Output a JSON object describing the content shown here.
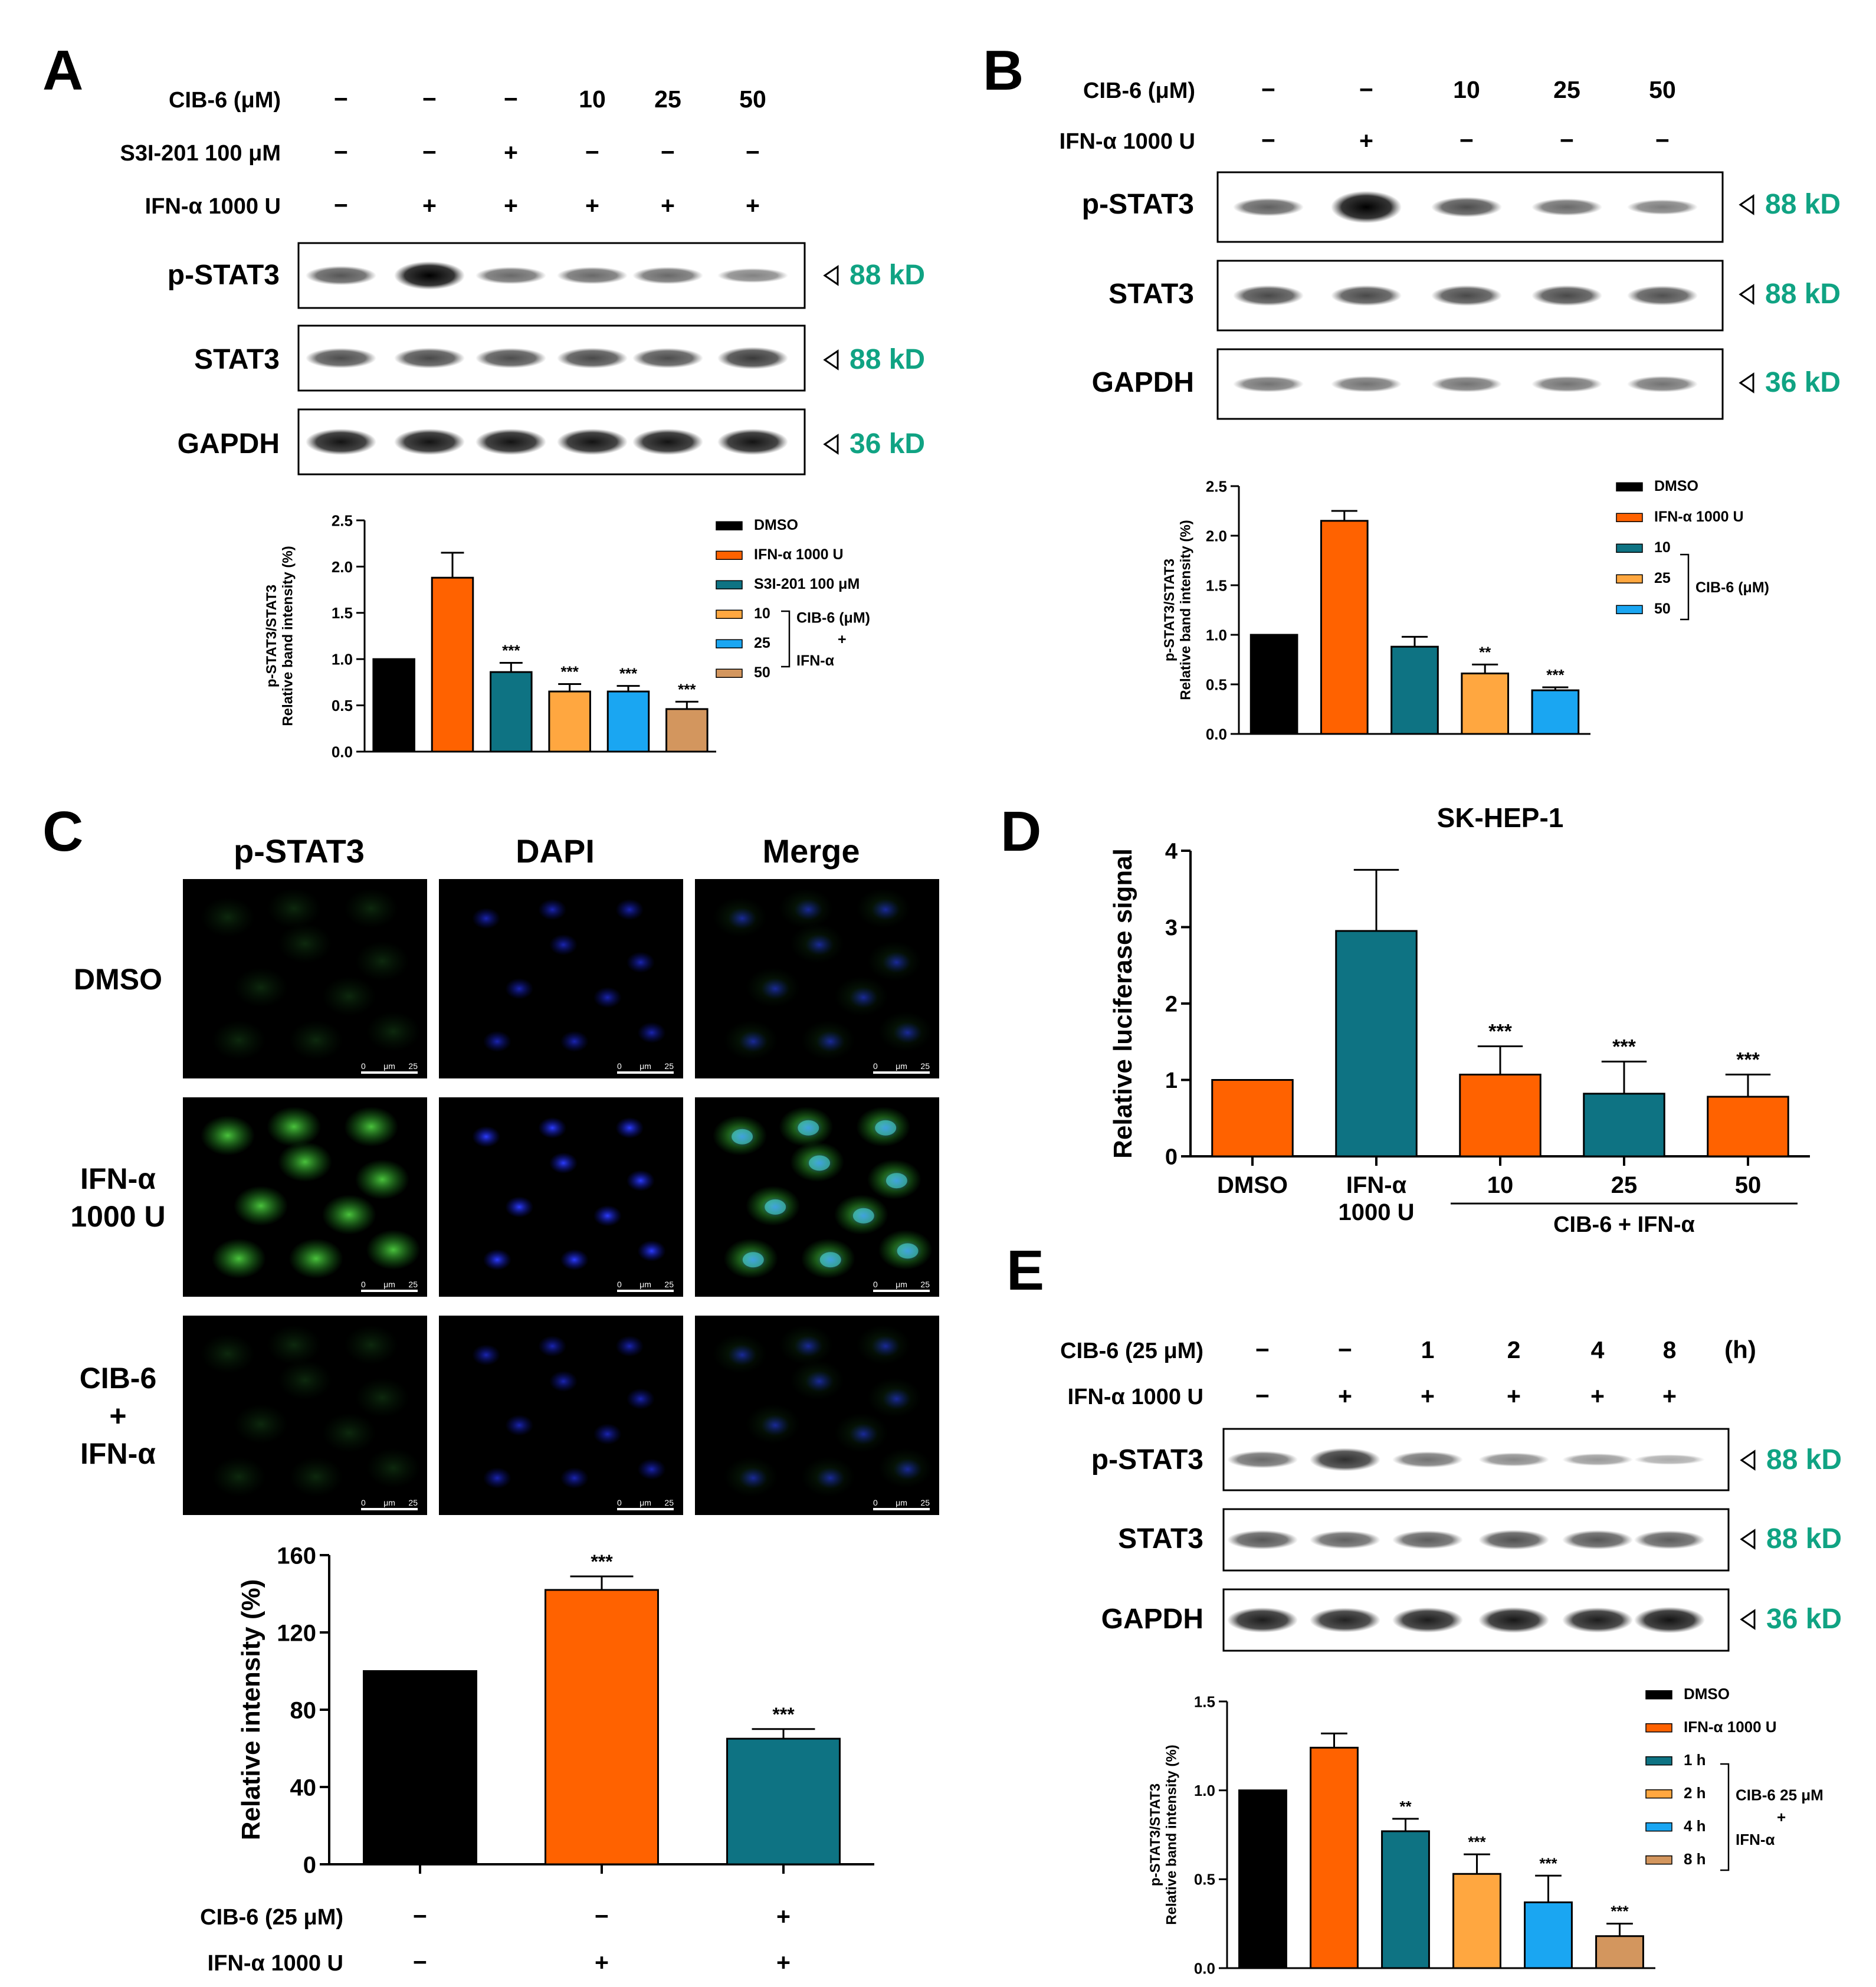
{
  "colors": {
    "dmso": "#000000",
    "ifn": "#ff6200",
    "teal": "#0e7383",
    "orange10": "#ffa740",
    "blue25": "#1aa6f2",
    "tan50": "#d3965e",
    "kd_green": "#10a383"
  },
  "blots": {
    "kd_88": "88 kD",
    "kd_36": "36 kD",
    "pstat3": "p-STAT3",
    "stat3": "STAT3",
    "gapdh": "GAPDH"
  },
  "panels": {
    "A": {
      "letter": "A",
      "cond_rows": [
        {
          "label": "CIB-6 (μM)",
          "values": [
            "−",
            "−",
            "−",
            "10",
            "25",
            "50"
          ]
        },
        {
          "label": "S3I-201 100 μM",
          "values": [
            "−",
            "−",
            "+",
            "−",
            "−",
            "−"
          ]
        },
        {
          "label": "IFN-α 1000 U",
          "values": [
            "−",
            "+",
            "+",
            "+",
            "+",
            "+"
          ]
        }
      ],
      "legend": [
        "DMSO",
        "IFN-α 1000 U",
        "S3I-201 100 μM",
        "10",
        "25",
        "50"
      ],
      "bracket_label": [
        "CIB-6 (μM)",
        "+",
        "IFN-α"
      ]
    },
    "B": {
      "letter": "B",
      "cond_rows": [
        {
          "label": "CIB-6 (μM)",
          "values": [
            "−",
            "−",
            "10",
            "25",
            "50"
          ]
        },
        {
          "label": "IFN-α 1000 U",
          "values": [
            "−",
            "+",
            "−",
            "−",
            "−"
          ]
        }
      ],
      "legend": [
        "DMSO",
        "IFN-α 1000 U",
        "10",
        "25",
        "50"
      ],
      "bracket_label": [
        "CIB-6 (μM)"
      ]
    },
    "C": {
      "letter": "C",
      "columns": [
        "p-STAT3",
        "DAPI",
        "Merge"
      ],
      "rows": [
        [
          "DMSO"
        ],
        [
          "IFN-α",
          "1000 U"
        ],
        [
          "CIB-6",
          "+",
          "IFN-α"
        ]
      ],
      "scalebar": [
        "0",
        "μm",
        "25"
      ],
      "cond_rows": [
        {
          "label": "CIB-6 (25 μM)",
          "values": [
            "−",
            "−",
            "+"
          ]
        },
        {
          "label": "IFN-α 1000 U",
          "values": [
            "−",
            "+",
            "+"
          ]
        }
      ]
    },
    "D": {
      "letter": "D",
      "xlabels": [
        [
          "DMSO"
        ],
        [
          "IFN-α",
          "1000 U"
        ],
        [
          "10"
        ],
        [
          "25"
        ],
        [
          "50"
        ]
      ],
      "group_label": "CIB-6 + IFN-α"
    },
    "E": {
      "letter": "E",
      "cond_rows": [
        {
          "label": "CIB-6 (25 μM)",
          "values": [
            "−",
            "−",
            "1",
            "2",
            "4",
            "8"
          ]
        },
        {
          "label": "IFN-α 1000 U",
          "values": [
            "−",
            "+",
            "+",
            "+",
            "+",
            "+"
          ]
        }
      ],
      "unit": "(h)",
      "legend": [
        "DMSO",
        "IFN-α 1000 U",
        "1 h",
        "2 h",
        "4 h",
        "8 h"
      ],
      "bracket_label": [
        "CIB-6 25 μM",
        "+",
        "IFN-α"
      ]
    }
  },
  "chart_data": [
    {
      "panel": "A",
      "type": "bar",
      "categories": [
        "DMSO",
        "IFN-α 1000 U",
        "S3I-201 100 μM",
        "10",
        "25",
        "50"
      ],
      "values": [
        1.0,
        1.88,
        0.86,
        0.65,
        0.65,
        0.46
      ],
      "errors": [
        0,
        0.27,
        0.1,
        0.08,
        0.06,
        0.08
      ],
      "significance": [
        "",
        "",
        "***",
        "***",
        "***",
        "***"
      ],
      "ylabel": [
        "p-STAT3/STAT3",
        "Relative band intensity (%)"
      ],
      "ylim": [
        0,
        2.5
      ],
      "yticks": [
        "0.0",
        "0.5",
        "1.0",
        "1.5",
        "2.0",
        "2.5"
      ]
    },
    {
      "panel": "B",
      "type": "bar",
      "categories": [
        "DMSO",
        "IFN-α 1000 U",
        "10",
        "25",
        "50"
      ],
      "values": [
        1.0,
        2.15,
        0.88,
        0.61,
        0.44
      ],
      "errors": [
        0,
        0.1,
        0.1,
        0.09,
        0.03
      ],
      "significance": [
        "",
        "",
        "",
        "**",
        "***"
      ],
      "ylabel": [
        "p-STAT3/STAT3",
        "Relative band intensity (%)"
      ],
      "ylim": [
        0,
        2.5
      ],
      "yticks": [
        "0.0",
        "0.5",
        "1.0",
        "1.5",
        "2.0",
        "2.5"
      ]
    },
    {
      "panel": "C",
      "type": "bar",
      "categories": [
        "DMSO",
        "IFN-α 1000 U",
        "CIB-6 + IFN-α"
      ],
      "values": [
        100,
        142,
        65
      ],
      "errors": [
        0,
        7,
        5
      ],
      "significance": [
        "",
        "***",
        "***"
      ],
      "ylabel": "Relative intensity (%)",
      "ylim": [
        0,
        160
      ],
      "yticks": [
        "0",
        "40",
        "80",
        "120",
        "160"
      ]
    },
    {
      "panel": "D",
      "type": "bar",
      "title": "SK-HEP-1",
      "categories": [
        "DMSO",
        "IFN-α 1000 U",
        "10",
        "25",
        "50"
      ],
      "values": [
        1.0,
        2.95,
        1.07,
        0.82,
        0.78
      ],
      "errors": [
        0,
        0.8,
        0.37,
        0.42,
        0.29
      ],
      "significance": [
        "",
        "",
        "***",
        "***",
        "***"
      ],
      "ylabel": "Relative  luciferase signal",
      "ylim": [
        0,
        4
      ],
      "yticks": [
        "0",
        "1",
        "2",
        "3",
        "4"
      ]
    },
    {
      "panel": "E",
      "type": "bar",
      "categories": [
        "DMSO",
        "IFN-α 1000 U",
        "1 h",
        "2 h",
        "4 h",
        "8 h"
      ],
      "values": [
        1.0,
        1.24,
        0.77,
        0.53,
        0.37,
        0.18
      ],
      "errors": [
        0,
        0.08,
        0.07,
        0.11,
        0.15,
        0.07
      ],
      "significance": [
        "",
        "",
        "**",
        "***",
        "***",
        "***"
      ],
      "ylabel": [
        "p-STAT3/STAT3",
        "Relative band intensity (%)"
      ],
      "ylim": [
        0,
        1.5
      ],
      "yticks": [
        "0.0",
        "0.5",
        "1.0",
        "1.5"
      ]
    }
  ]
}
